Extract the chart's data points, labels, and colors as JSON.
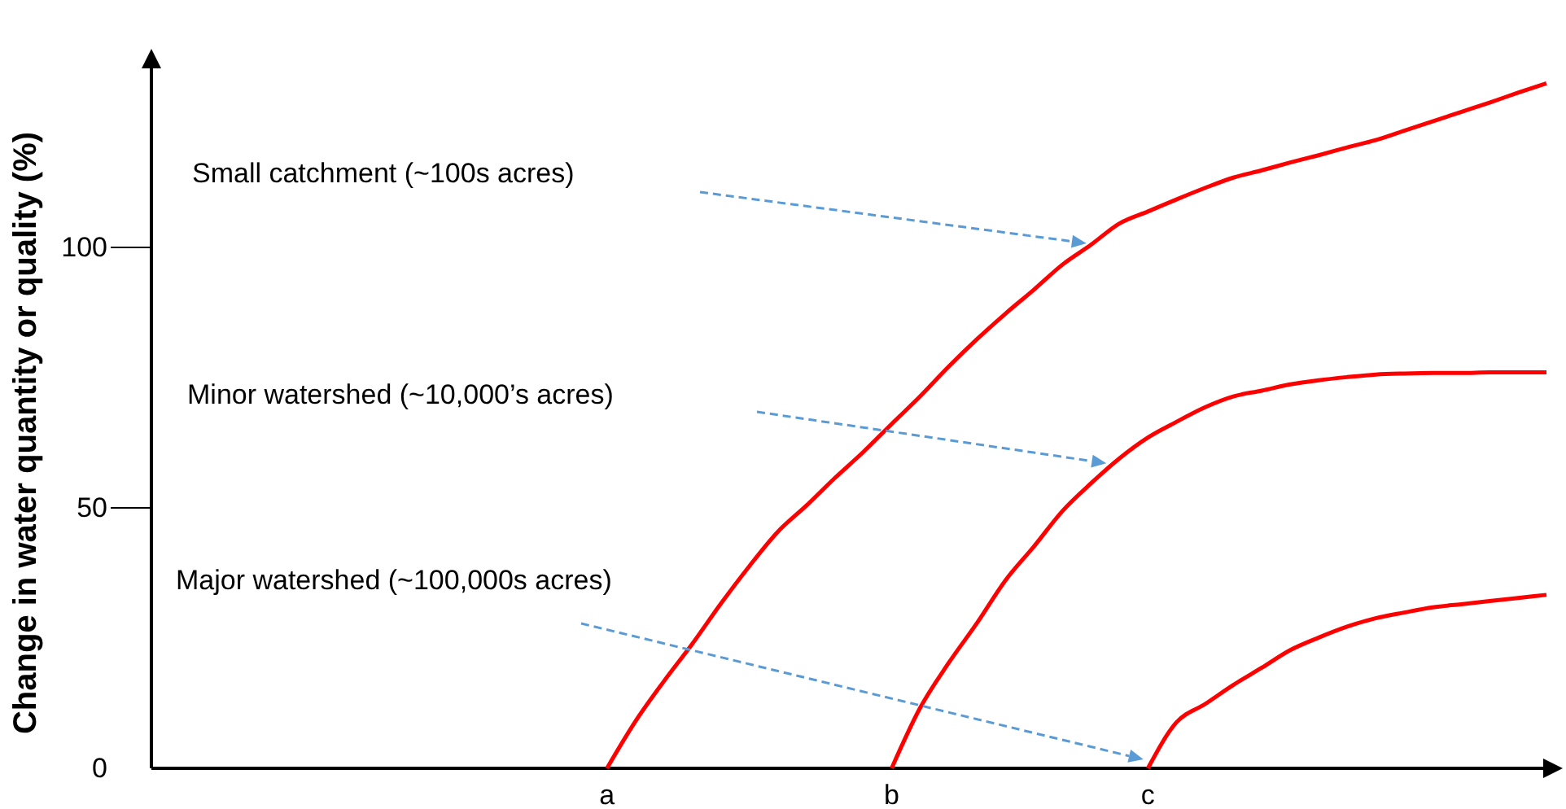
{
  "chart_data": {
    "type": "line",
    "ylabel": "Change in water quantity or quality (%)",
    "annotations": [
      "Small catchment (~100s acres)",
      "Minor watershed (~10,000’s acres)",
      "Major watershed (~100,000s acres)"
    ],
    "categories": [
      null,
      null,
      null,
      null,
      null,
      null,
      null,
      null,
      null,
      null,
      null,
      null,
      null,
      null,
      null,
      null,
      "a",
      null,
      null,
      null,
      null,
      null,
      null,
      null,
      null,
      null,
      "b",
      null,
      null,
      null,
      null,
      null,
      null,
      null,
      null,
      "c",
      null,
      null,
      null,
      null,
      null,
      null,
      null,
      null,
      null,
      null,
      null,
      null,
      null,
      null
    ],
    "ylim": [
      0,
      135
    ],
    "yticks": [
      0,
      50,
      100
    ],
    "grid": false,
    "marker": "none",
    "line_style": "solid",
    "series": [
      {
        "color": "#ff0000",
        "values": [
          null,
          null,
          null,
          null,
          null,
          null,
          null,
          null,
          null,
          null,
          null,
          null,
          null,
          null,
          null,
          null,
          0,
          9.0,
          16.7,
          23.9,
          31.6,
          38.8,
          45.4,
          50.4,
          55.7,
          60.7,
          66.1,
          71.4,
          77.1,
          82.4,
          87.3,
          91.9,
          96.7,
          100.5,
          104.6,
          106.9,
          109.2,
          111.4,
          113.4,
          114.8,
          116.3,
          117.7,
          119.2,
          120.6,
          122.4,
          124.2,
          126.0,
          127.8,
          129.7,
          131.5
        ]
      },
      {
        "color": "#ff0000",
        "values": [
          null,
          null,
          null,
          null,
          null,
          null,
          null,
          null,
          null,
          null,
          null,
          null,
          null,
          null,
          null,
          null,
          null,
          null,
          null,
          null,
          null,
          null,
          null,
          null,
          null,
          null,
          0,
          11.6,
          20.2,
          27.9,
          36.1,
          42.6,
          49.4,
          54.7,
          59.5,
          63.5,
          66.5,
          69.3,
          71.4,
          72.5,
          73.7,
          74.5,
          75.1,
          75.6,
          75.8,
          75.9,
          75.9,
          76,
          76,
          76
        ]
      },
      {
        "color": "#ff0000",
        "values": [
          null,
          null,
          null,
          null,
          null,
          null,
          null,
          null,
          null,
          null,
          null,
          null,
          null,
          null,
          null,
          null,
          null,
          null,
          null,
          null,
          null,
          null,
          null,
          null,
          null,
          null,
          null,
          null,
          null,
          null,
          null,
          null,
          null,
          null,
          null,
          0,
          8.8,
          12.3,
          16.0,
          19.3,
          22.7,
          25.1,
          27.2,
          28.8,
          29.9,
          30.9,
          31.5,
          32.1,
          32.7,
          33.3
        ]
      }
    ]
  }
}
